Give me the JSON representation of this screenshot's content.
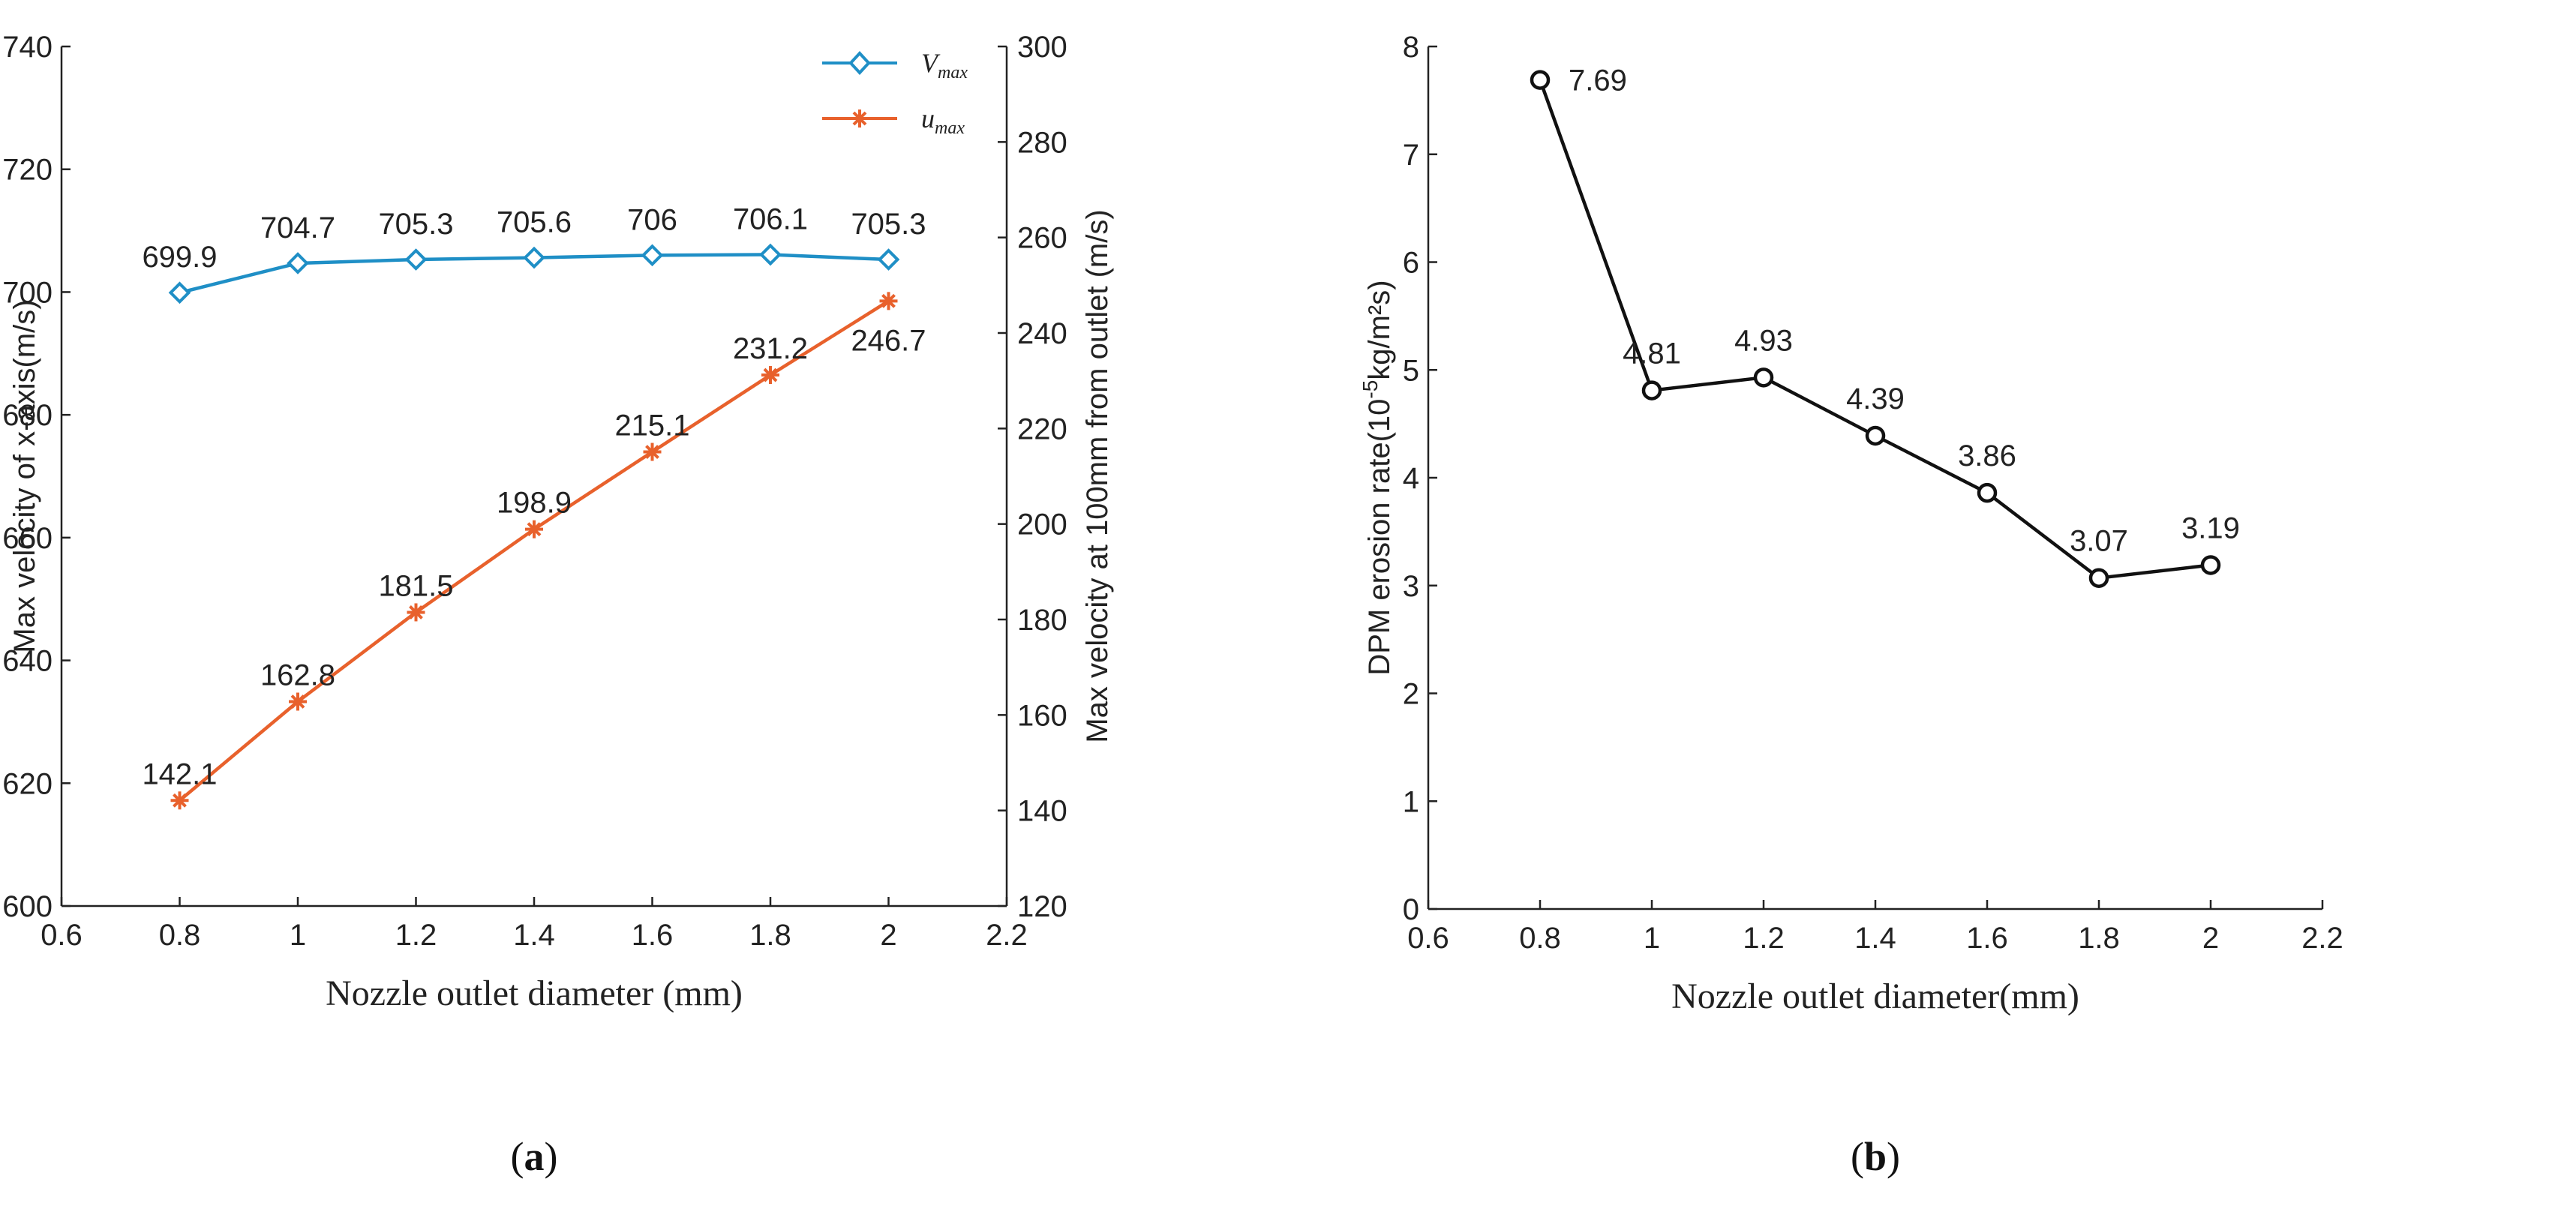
{
  "chart_data": [
    {
      "panel": "a",
      "type": "line",
      "xlabel": "Nozzle outlet diameter (mm)",
      "ylabel": "Max velocity of  x-axis(m/s)",
      "y2label": "Max velocity at 100mm from outlet (m/s)",
      "xlim": [
        0.6,
        2.2
      ],
      "ylim": [
        600,
        740
      ],
      "y2lim": [
        120,
        300
      ],
      "xticks": [
        "0.6",
        "0.8",
        "1",
        "1.2",
        "1.4",
        "1.6",
        "1.8",
        "2",
        "2.2"
      ],
      "yticks": [
        "600",
        "620",
        "640",
        "660",
        "680",
        "700",
        "720",
        "740"
      ],
      "y2ticks": [
        "120",
        "140",
        "160",
        "180",
        "200",
        "220",
        "240",
        "260",
        "280",
        "300"
      ],
      "x": [
        0.8,
        1.0,
        1.2,
        1.4,
        1.6,
        1.8,
        2.0
      ],
      "series": [
        {
          "name": "V",
          "name_sub": "max",
          "axis": "left",
          "marker": "diamond",
          "color": "#1f8fc6",
          "values": [
            699.9,
            704.7,
            705.3,
            705.6,
            706,
            706.1,
            705.3
          ],
          "labels": [
            "699.9",
            "704.7",
            "705.3",
            "705.6",
            "706",
            "706.1",
            "705.3"
          ]
        },
        {
          "name": "u",
          "name_sub": "max",
          "axis": "right",
          "marker": "asterisk",
          "color": "#e8612c",
          "values": [
            142.1,
            162.8,
            181.5,
            198.9,
            215.1,
            231.2,
            246.7
          ],
          "labels": [
            "142.1",
            "162.8",
            "181.5",
            "198.9",
            "215.1",
            "231.2",
            "246.7"
          ]
        }
      ],
      "caption": "a"
    },
    {
      "panel": "b",
      "type": "line",
      "xlabel": "Nozzle outlet diameter(mm)",
      "ylabel_pre": "DPM erosion rate(10",
      "ylabel_sup": "-5",
      "ylabel_post": "kg/m²s)",
      "xlim": [
        0.6,
        2.2
      ],
      "ylim": [
        0,
        8
      ],
      "xticks": [
        "0.6",
        "0.8",
        "1",
        "1.2",
        "1.4",
        "1.6",
        "1.8",
        "2",
        "2.2"
      ],
      "yticks": [
        "0",
        "1",
        "2",
        "3",
        "4",
        "5",
        "6",
        "7",
        "8"
      ],
      "x": [
        0.8,
        1.0,
        1.2,
        1.4,
        1.6,
        1.8,
        2.0
      ],
      "series": [
        {
          "name": "DPM erosion rate",
          "marker": "circle",
          "color": "#111111",
          "values": [
            7.69,
            4.81,
            4.93,
            4.39,
            3.86,
            3.07,
            3.19
          ],
          "labels": [
            "7.69",
            "4.81",
            "4.93",
            "4.39",
            "3.86",
            "3.07",
            "3.19"
          ]
        }
      ],
      "caption": "b"
    }
  ]
}
